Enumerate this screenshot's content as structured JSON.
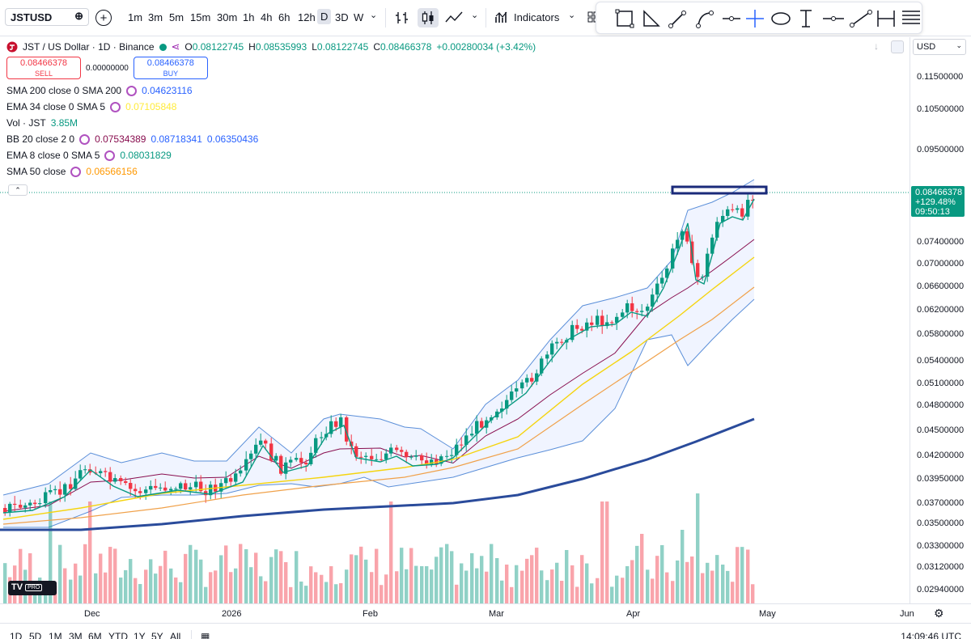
{
  "toolbar": {
    "symbol": "JSTUSD",
    "timeframes": [
      "1m",
      "3m",
      "5m",
      "15m",
      "30m",
      "1h",
      "4h",
      "6h",
      "12h",
      "D",
      "3D",
      "W"
    ],
    "active_timeframe": "D",
    "indicators_label": "Indicators"
  },
  "legend": {
    "title": "JST / US Dollar · 1D · Binance",
    "o_label": "O",
    "o": "0.08122745",
    "h_label": "H",
    "h": "0.08535993",
    "l_label": "L",
    "l": "0.08122745",
    "c_label": "C",
    "c": "0.08466378",
    "change": "+0.00280034 (+3.42%)",
    "sell_price": "0.08466378",
    "sell_label": "SELL",
    "spread": "0.00000000",
    "buy_price": "0.08466378",
    "buy_label": "BUY",
    "indicators": [
      {
        "name": "SMA 200 close 0 SMA 200",
        "values": [
          "0.04623116"
        ],
        "colors": [
          "#2962ff"
        ]
      },
      {
        "name": "EMA 34 close 0 SMA 5",
        "values": [
          "0.07105848"
        ],
        "colors": [
          "#ffeb3b"
        ]
      },
      {
        "name": "Vol · JST",
        "values": [
          "3.85M"
        ],
        "colors": [
          "#089981"
        ]
      },
      {
        "name": "BB 20 close 2 0",
        "values": [
          "0.07534389",
          "0.08718341",
          "0.06350436"
        ],
        "colors": [
          "#880e4f",
          "#2962ff",
          "#2962ff"
        ]
      },
      {
        "name": "EMA 8 close 0 SMA 5",
        "values": [
          "0.08031829"
        ],
        "colors": [
          "#089981"
        ]
      },
      {
        "name": "SMA 50 close",
        "values": [
          "0.06566156"
        ],
        "colors": [
          "#ff9800"
        ]
      }
    ]
  },
  "price_scale": {
    "currency": "USD",
    "ticks": [
      "0.11500000",
      "0.10500000",
      "0.09500000",
      "0.07400000",
      "0.07000000",
      "0.06600000",
      "0.06200000",
      "0.05800000",
      "0.05400000",
      "0.05100000",
      "0.04800000",
      "0.04500000",
      "0.04200000",
      "0.03950000",
      "0.03700000",
      "0.03500000",
      "0.03300000",
      "0.03120000",
      "0.02940000"
    ],
    "last_price": "0.08466378",
    "last_change": "+129.48%",
    "countdown": "09:50:13"
  },
  "date_axis": {
    "labels": [
      "Dec",
      "2026",
      "Feb",
      "Mar",
      "Apr",
      "May",
      "Jun"
    ]
  },
  "bottom_bar": {
    "periods": [
      "1D",
      "5D",
      "1M",
      "3M",
      "6M",
      "YTD",
      "1Y",
      "5Y",
      "All"
    ],
    "clock": "14:09:46 UTC"
  },
  "logo_text": "TV",
  "logo_badge": "PRO",
  "colors": {
    "up": "#089981",
    "down": "#f23645",
    "sma200": "#2a4b9b",
    "ema34": "#f5d40f",
    "sma50": "#f0a14a",
    "bb": "#5b8fd9",
    "ema8": "#089981"
  }
}
